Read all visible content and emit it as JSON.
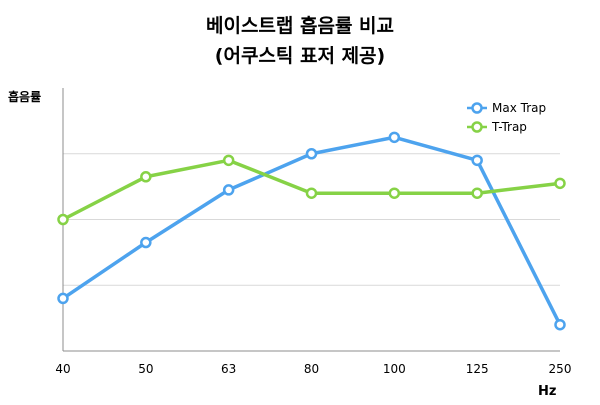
{
  "chart_data": {
    "type": "line",
    "title": "베이스트랩 흡음률 비교",
    "subtitle": "(어쿠스틱 표저 제공)",
    "ylabel": "흡음률",
    "xlabel": "Hz",
    "categories": [
      "40",
      "50",
      "63",
      "80",
      "100",
      "125",
      "250"
    ],
    "ylim": [
      0,
      8
    ],
    "grid": true,
    "legend_position": "top-right",
    "series": [
      {
        "name": "Max Trap",
        "color": "#4DA3EE",
        "values": [
          1.6,
          3.3,
          4.9,
          6.0,
          6.5,
          5.8,
          0.8
        ]
      },
      {
        "name": "T-Trap",
        "color": "#86D246",
        "values": [
          4.0,
          5.3,
          5.8,
          4.8,
          4.8,
          4.8,
          5.1
        ]
      }
    ]
  }
}
